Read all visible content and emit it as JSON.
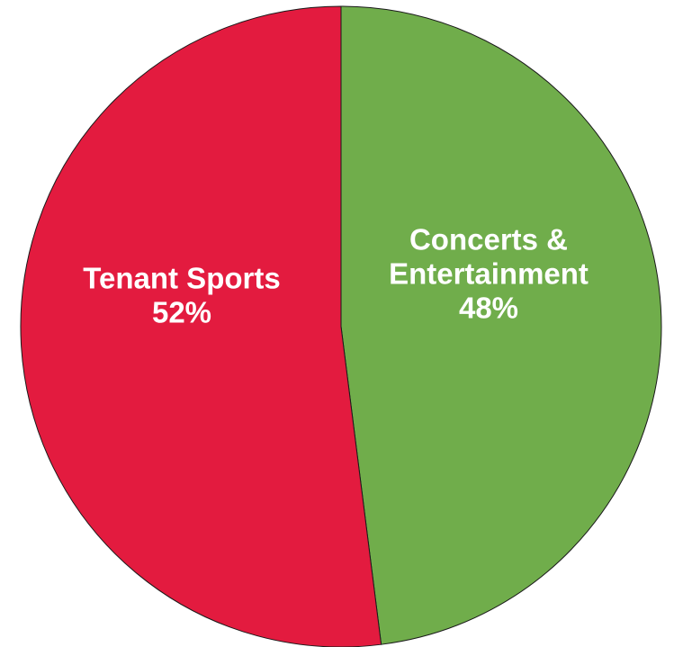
{
  "chart_data": {
    "type": "pie",
    "slices": [
      {
        "label_lines": [
          "Concerts &",
          "Entertainment"
        ],
        "value": 48,
        "value_label": "48%",
        "color": "#70ad4b"
      },
      {
        "label_lines": [
          "Tenant Sports"
        ],
        "value": 52,
        "value_label": "52%",
        "color": "#e31b3f"
      }
    ],
    "start_angle": "12 o'clock",
    "direction": "clockwise",
    "outline_color": "#1a1a1a"
  }
}
